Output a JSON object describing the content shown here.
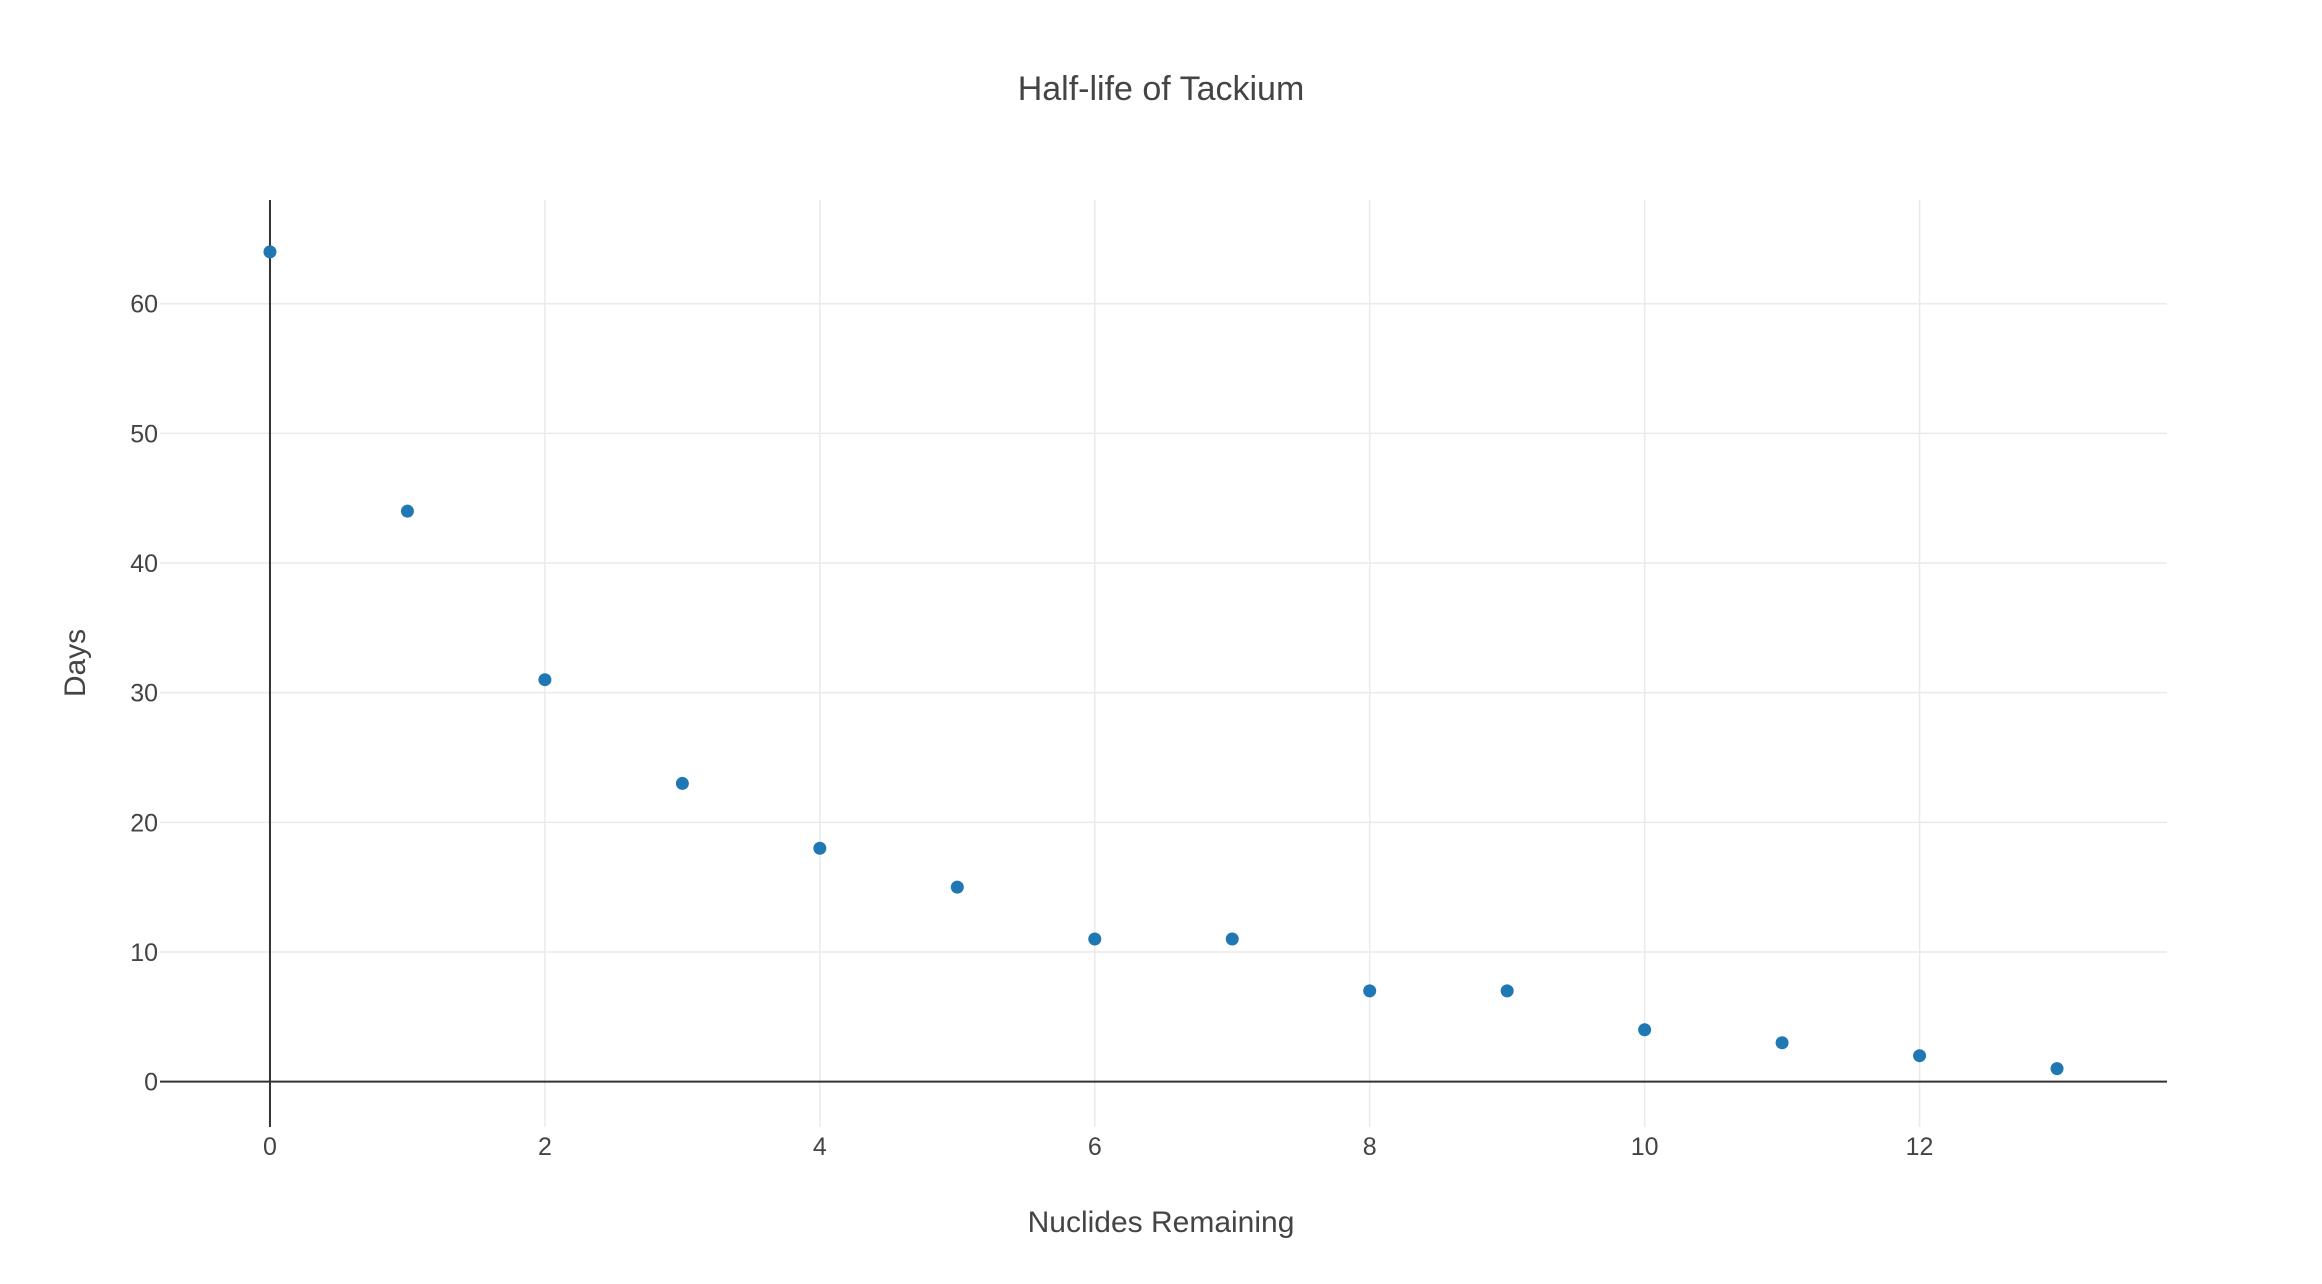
{
  "chart_data": {
    "type": "scatter",
    "title": "Half-life of Tackium",
    "xlabel": "Nuclides Remaining",
    "ylabel": "Days",
    "xlim": [
      -0.8,
      13.8
    ],
    "ylim": [
      -3.5,
      68
    ],
    "xticks": [
      0,
      2,
      4,
      6,
      8,
      10,
      12
    ],
    "yticks": [
      0,
      10,
      20,
      30,
      40,
      50,
      60
    ],
    "grid": true,
    "marker_color": "#1f77b4",
    "series": [
      {
        "x": [
          0,
          1,
          2,
          3,
          4,
          5,
          6,
          7,
          8,
          9,
          10,
          11,
          12,
          13
        ],
        "y": [
          64,
          44,
          31,
          23,
          18,
          15,
          11,
          11,
          7,
          7,
          4,
          3,
          2,
          1
        ]
      }
    ]
  }
}
